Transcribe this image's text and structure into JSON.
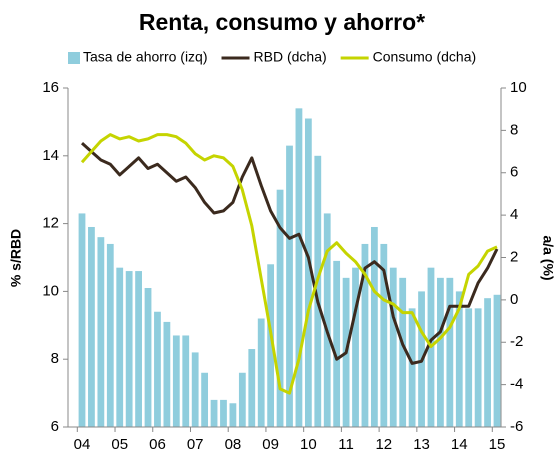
{
  "chart_data": {
    "type": "bar",
    "title": "Renta, consumo y ahorro*",
    "y_label": "% s/RBD",
    "y2_label": "a/a (%)",
    "categories": [
      "04",
      null,
      null,
      null,
      "05",
      null,
      null,
      null,
      "06",
      null,
      null,
      null,
      "07",
      null,
      null,
      null,
      "08",
      null,
      null,
      null,
      "09",
      null,
      null,
      null,
      "10",
      null,
      null,
      null,
      "11",
      null,
      null,
      null,
      "12",
      null,
      null,
      null,
      "13",
      null,
      null,
      null,
      "14",
      null,
      null,
      null,
      "15"
    ],
    "series": [
      {
        "name": "Tasa de ahorro (izq)",
        "type": "bar",
        "color": "#8fcddd",
        "values": [
          12.3,
          11.9,
          11.6,
          11.4,
          10.7,
          10.6,
          10.6,
          10.1,
          9.4,
          9.1,
          8.7,
          8.7,
          8.2,
          7.6,
          6.8,
          6.8,
          6.7,
          7.6,
          8.3,
          9.2,
          10.8,
          13.0,
          14.3,
          15.4,
          15.1,
          14.0,
          12.3,
          10.9,
          10.4,
          10.7,
          11.4,
          11.9,
          11.4,
          10.7,
          10.4,
          9.5,
          10.0,
          10.7,
          10.4,
          10.4,
          10.0,
          9.5,
          9.5,
          9.8,
          9.9
        ]
      },
      {
        "name": "RBD (dcha)",
        "type": "line",
        "axis": "y2",
        "color": "#3b2a1e",
        "values": [
          7.4,
          7.0,
          6.6,
          6.4,
          5.9,
          6.3,
          6.7,
          6.2,
          6.4,
          6.0,
          5.6,
          5.8,
          5.3,
          4.6,
          4.1,
          4.2,
          4.6,
          5.8,
          6.7,
          5.4,
          4.2,
          3.4,
          2.9,
          3.1,
          2.0,
          -0.1,
          -1.5,
          -2.8,
          -2.5,
          -0.5,
          1.5,
          1.8,
          1.4,
          -0.8,
          -2.1,
          -3.0,
          -2.9,
          -1.9,
          -1.5,
          -0.3,
          -0.3,
          -0.3,
          0.8,
          1.5,
          2.4
        ]
      },
      {
        "name": "Consumo (dcha)",
        "type": "line",
        "axis": "y2",
        "color": "#c5d400",
        "values": [
          6.5,
          7.0,
          7.5,
          7.8,
          7.6,
          7.7,
          7.5,
          7.6,
          7.8,
          7.8,
          7.7,
          7.4,
          6.9,
          6.6,
          6.8,
          6.7,
          6.3,
          5.2,
          3.5,
          1.0,
          -1.5,
          -4.2,
          -4.4,
          -2.8,
          -0.5,
          1.0,
          2.3,
          2.7,
          2.2,
          1.8,
          1.2,
          0.4,
          0.0,
          -0.2,
          -0.6,
          -0.6,
          -1.5,
          -2.2,
          -1.8,
          -1.3,
          -0.4,
          1.2,
          1.6,
          2.3,
          2.5
        ]
      }
    ],
    "ylim": [
      6,
      16
    ],
    "yticks": [
      6,
      8,
      10,
      12,
      14,
      16
    ],
    "y2lim": [
      -6,
      10
    ],
    "y2ticks": [
      -6,
      -4,
      -2,
      0,
      2,
      4,
      6,
      8,
      10
    ]
  }
}
